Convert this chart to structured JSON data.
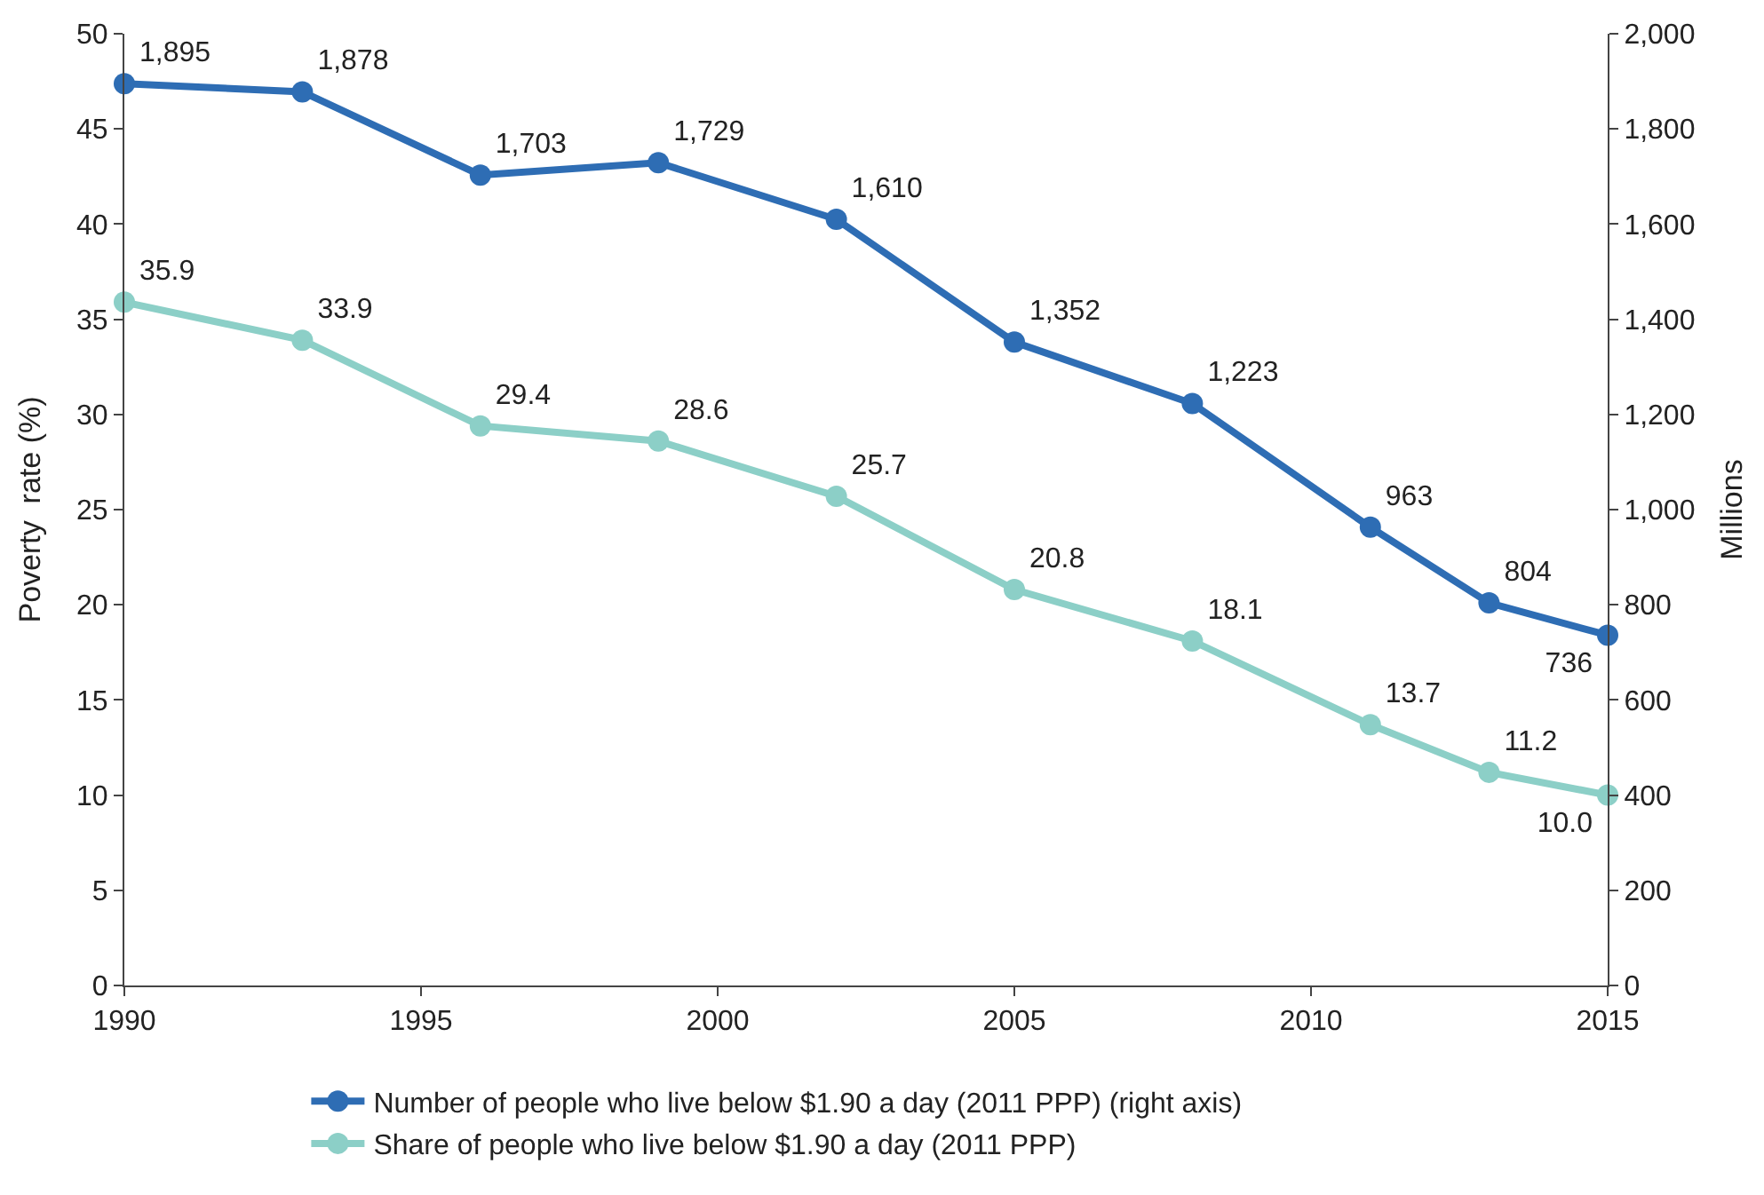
{
  "chart_data": {
    "type": "line",
    "x": [
      1990,
      1993,
      1996,
      1999,
      2002,
      2005,
      2008,
      2011,
      2013,
      2015
    ],
    "series": [
      {
        "name": "Number of people who live below $1.90 a day (2011 PPP) (right axis)",
        "color": "#2e6db4",
        "axis": "y2",
        "values": [
          1895,
          1878,
          1703,
          1729,
          1610,
          1352,
          1223,
          963,
          804,
          736
        ],
        "value_labels": [
          "1,895",
          "1,878",
          "1,703",
          "1,729",
          "1,610",
          "1,352",
          "1,223",
          "963",
          "804",
          "736"
        ]
      },
      {
        "name": "Share of people who live below $1.90 a day (2011 PPP)",
        "color": "#8ccfc7",
        "values": [
          35.9,
          33.9,
          29.4,
          28.6,
          25.7,
          20.8,
          18.1,
          13.7,
          11.2,
          10.0
        ],
        "value_labels": [
          "35.9",
          "33.9",
          "29.4",
          "28.6",
          "25.7",
          "20.8",
          "18.1",
          "13.7",
          "11.2",
          "10.0"
        ]
      }
    ],
    "ylabel": "Poverty  rate (%)",
    "y2label": "Millions",
    "xlim": [
      1990,
      2015
    ],
    "xticks": [
      1990,
      1995,
      2000,
      2005,
      2010,
      2015
    ],
    "ylim": [
      0,
      50
    ],
    "yticks": [
      0,
      5,
      10,
      15,
      20,
      25,
      30,
      35,
      40,
      45,
      50
    ],
    "y2lim": [
      0,
      2000
    ],
    "y2ticks": [
      0,
      200,
      400,
      600,
      800,
      {
        "value": 1000,
        "label": "1,000"
      },
      {
        "value": 1200,
        "label": "1,200"
      },
      {
        "value": 1400,
        "label": "1,400"
      },
      {
        "value": 1600,
        "label": "1,600"
      },
      {
        "value": 1800,
        "label": "1,800"
      },
      {
        "value": 2000,
        "label": "2,000"
      }
    ],
    "legend": "bottom",
    "marker": "circle",
    "line_style": "solid"
  }
}
